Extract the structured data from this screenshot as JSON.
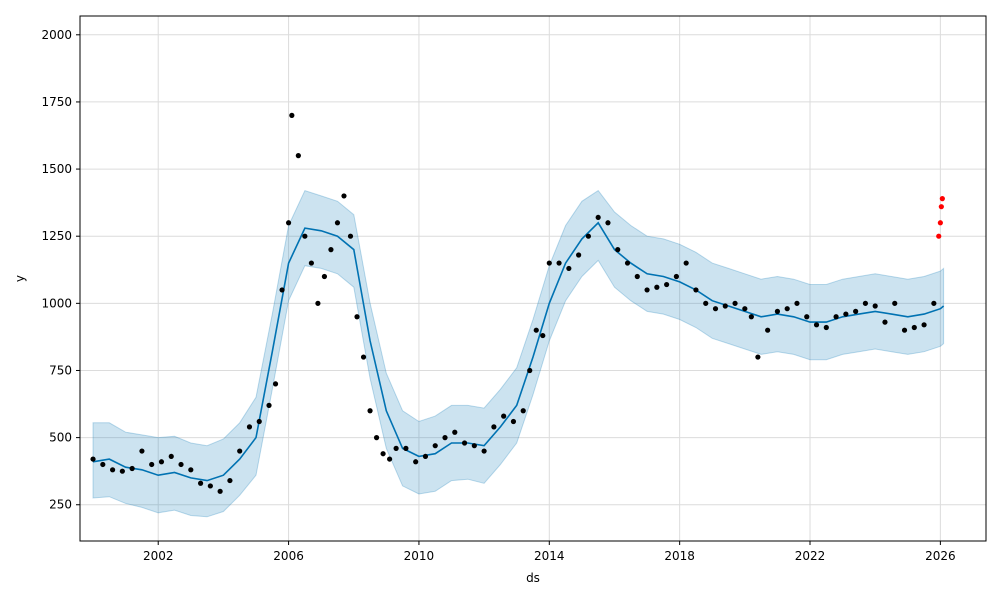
{
  "chart_data": {
    "type": "scatter",
    "title": "",
    "xlabel": "ds",
    "ylabel": "y",
    "xlim": [
      1999.6,
      2027.4
    ],
    "ylim": [
      115,
      2070
    ],
    "grid": true,
    "x_ticks": [
      2002,
      2006,
      2010,
      2014,
      2018,
      2022,
      2026
    ],
    "x_tick_labels": [
      "2002",
      "2006",
      "2010",
      "2014",
      "2018",
      "2022",
      "2026"
    ],
    "y_ticks": [
      250,
      500,
      750,
      1000,
      1250,
      1500,
      1750,
      2000
    ],
    "y_tick_labels": [
      "250",
      "500",
      "750",
      "1000",
      "1250",
      "1500",
      "1750",
      "2000"
    ],
    "colors": {
      "observed": "#000000",
      "recent": "#ff0000",
      "forecast": "#0072B2",
      "interval": "#0072B2",
      "grid": "#dcdcdc"
    },
    "series": [
      {
        "role": "observed",
        "kind": "scatter",
        "x": [
          2000.0,
          2000.3,
          2000.6,
          2000.9,
          2001.2,
          2001.5,
          2001.8,
          2002.1,
          2002.4,
          2002.7,
          2003.0,
          2003.3,
          2003.6,
          2003.9,
          2004.2,
          2004.5,
          2004.8,
          2005.1,
          2005.4,
          2005.6,
          2005.8,
          2006.0,
          2006.1,
          2006.3,
          2006.5,
          2006.7,
          2006.9,
          2007.1,
          2007.3,
          2007.5,
          2007.7,
          2007.9,
          2008.1,
          2008.3,
          2008.5,
          2008.7,
          2008.9,
          2009.1,
          2009.3,
          2009.6,
          2009.9,
          2010.2,
          2010.5,
          2010.8,
          2011.1,
          2011.4,
          2011.7,
          2012.0,
          2012.3,
          2012.6,
          2012.9,
          2013.2,
          2013.4,
          2013.6,
          2013.8,
          2014.0,
          2014.3,
          2014.6,
          2014.9,
          2015.2,
          2015.5,
          2015.8,
          2016.1,
          2016.4,
          2016.7,
          2017.0,
          2017.3,
          2017.6,
          2017.9,
          2018.2,
          2018.5,
          2018.8,
          2019.1,
          2019.4,
          2019.7,
          2020.0,
          2020.2,
          2020.4,
          2020.7,
          2021.0,
          2021.3,
          2021.6,
          2021.9,
          2022.2,
          2022.5,
          2022.8,
          2023.1,
          2023.4,
          2023.7,
          2024.0,
          2024.3,
          2024.6,
          2024.9,
          2025.2,
          2025.5,
          2025.8
        ],
        "y": [
          420,
          400,
          380,
          375,
          385,
          450,
          400,
          410,
          430,
          400,
          380,
          330,
          320,
          300,
          340,
          450,
          540,
          560,
          620,
          700,
          1050,
          1300,
          1700,
          1550,
          1250,
          1150,
          1000,
          1100,
          1200,
          1300,
          1400,
          1250,
          950,
          800,
          600,
          500,
          440,
          420,
          460,
          460,
          410,
          430,
          470,
          500,
          520,
          480,
          470,
          450,
          540,
          580,
          560,
          600,
          750,
          900,
          880,
          1150,
          1150,
          1130,
          1180,
          1250,
          1320,
          1300,
          1200,
          1150,
          1100,
          1050,
          1060,
          1070,
          1100,
          1150,
          1050,
          1000,
          980,
          990,
          1000,
          980,
          950,
          800,
          900,
          970,
          980,
          1000,
          950,
          920,
          910,
          950,
          960,
          970,
          1000,
          990,
          930,
          1000,
          900,
          910,
          920,
          1000
        ]
      },
      {
        "role": "recent",
        "kind": "scatter",
        "x": [
          2025.95,
          2026.0,
          2026.03,
          2026.06
        ],
        "y": [
          1250,
          1300,
          1360,
          1390
        ]
      },
      {
        "role": "forecast",
        "kind": "line",
        "x": [
          2000.0,
          2000.5,
          2001.0,
          2001.5,
          2002.0,
          2002.5,
          2003.0,
          2003.5,
          2004.0,
          2004.5,
          2005.0,
          2005.5,
          2006.0,
          2006.5,
          2007.0,
          2007.5,
          2008.0,
          2008.5,
          2009.0,
          2009.5,
          2010.0,
          2010.5,
          2011.0,
          2011.5,
          2012.0,
          2012.5,
          2013.0,
          2013.5,
          2014.0,
          2014.5,
          2015.0,
          2015.5,
          2016.0,
          2016.5,
          2017.0,
          2017.5,
          2018.0,
          2018.5,
          2019.0,
          2019.5,
          2020.0,
          2020.5,
          2021.0,
          2021.5,
          2022.0,
          2022.5,
          2023.0,
          2023.5,
          2024.0,
          2024.5,
          2025.0,
          2025.5,
          2026.0,
          2026.1
        ],
        "y": [
          410,
          420,
          390,
          380,
          360,
          370,
          350,
          340,
          360,
          420,
          500,
          820,
          1150,
          1280,
          1270,
          1250,
          1200,
          860,
          600,
          460,
          430,
          440,
          480,
          480,
          470,
          540,
          620,
          800,
          1000,
          1150,
          1240,
          1300,
          1200,
          1150,
          1110,
          1100,
          1080,
          1050,
          1010,
          990,
          970,
          950,
          960,
          950,
          930,
          930,
          950,
          960,
          970,
          960,
          950,
          960,
          980,
          990
        ]
      },
      {
        "role": "interval-upper",
        "kind": "area",
        "x": [
          2000.0,
          2000.5,
          2001.0,
          2001.5,
          2002.0,
          2002.5,
          2003.0,
          2003.5,
          2004.0,
          2004.5,
          2005.0,
          2005.5,
          2006.0,
          2006.5,
          2007.0,
          2007.5,
          2008.0,
          2008.5,
          2009.0,
          2009.5,
          2010.0,
          2010.5,
          2011.0,
          2011.5,
          2012.0,
          2012.5,
          2013.0,
          2013.5,
          2014.0,
          2014.5,
          2015.0,
          2015.5,
          2016.0,
          2016.5,
          2017.0,
          2017.5,
          2018.0,
          2018.5,
          2019.0,
          2019.5,
          2020.0,
          2020.5,
          2021.0,
          2021.5,
          2022.0,
          2022.5,
          2023.0,
          2023.5,
          2024.0,
          2024.5,
          2025.0,
          2025.5,
          2026.0,
          2026.1
        ],
        "y": [
          555,
          555,
          520,
          510,
          500,
          505,
          480,
          470,
          495,
          555,
          650,
          960,
          1290,
          1420,
          1400,
          1380,
          1330,
          1000,
          740,
          600,
          560,
          580,
          620,
          620,
          610,
          680,
          760,
          940,
          1140,
          1290,
          1380,
          1420,
          1340,
          1290,
          1250,
          1240,
          1220,
          1190,
          1150,
          1130,
          1110,
          1090,
          1100,
          1090,
          1070,
          1070,
          1090,
          1100,
          1110,
          1100,
          1090,
          1100,
          1120,
          1130
        ]
      },
      {
        "role": "interval-lower",
        "kind": "area",
        "x": [
          2000.0,
          2000.5,
          2001.0,
          2001.5,
          2002.0,
          2002.5,
          2003.0,
          2003.5,
          2004.0,
          2004.5,
          2005.0,
          2005.5,
          2006.0,
          2006.5,
          2007.0,
          2007.5,
          2008.0,
          2008.5,
          2009.0,
          2009.5,
          2010.0,
          2010.5,
          2011.0,
          2011.5,
          2012.0,
          2012.5,
          2013.0,
          2013.5,
          2014.0,
          2014.5,
          2015.0,
          2015.5,
          2016.0,
          2016.5,
          2017.0,
          2017.5,
          2018.0,
          2018.5,
          2019.0,
          2019.5,
          2020.0,
          2020.5,
          2021.0,
          2021.5,
          2022.0,
          2022.5,
          2023.0,
          2023.5,
          2024.0,
          2024.5,
          2025.0,
          2025.5,
          2026.0,
          2026.1
        ],
        "y": [
          275,
          280,
          255,
          240,
          220,
          230,
          210,
          205,
          225,
          285,
          360,
          680,
          1010,
          1140,
          1130,
          1110,
          1060,
          720,
          460,
          320,
          290,
          300,
          340,
          345,
          330,
          400,
          480,
          660,
          860,
          1010,
          1100,
          1160,
          1060,
          1010,
          970,
          960,
          940,
          910,
          870,
          850,
          830,
          810,
          820,
          810,
          790,
          790,
          810,
          820,
          830,
          820,
          810,
          820,
          840,
          850
        ]
      }
    ]
  }
}
